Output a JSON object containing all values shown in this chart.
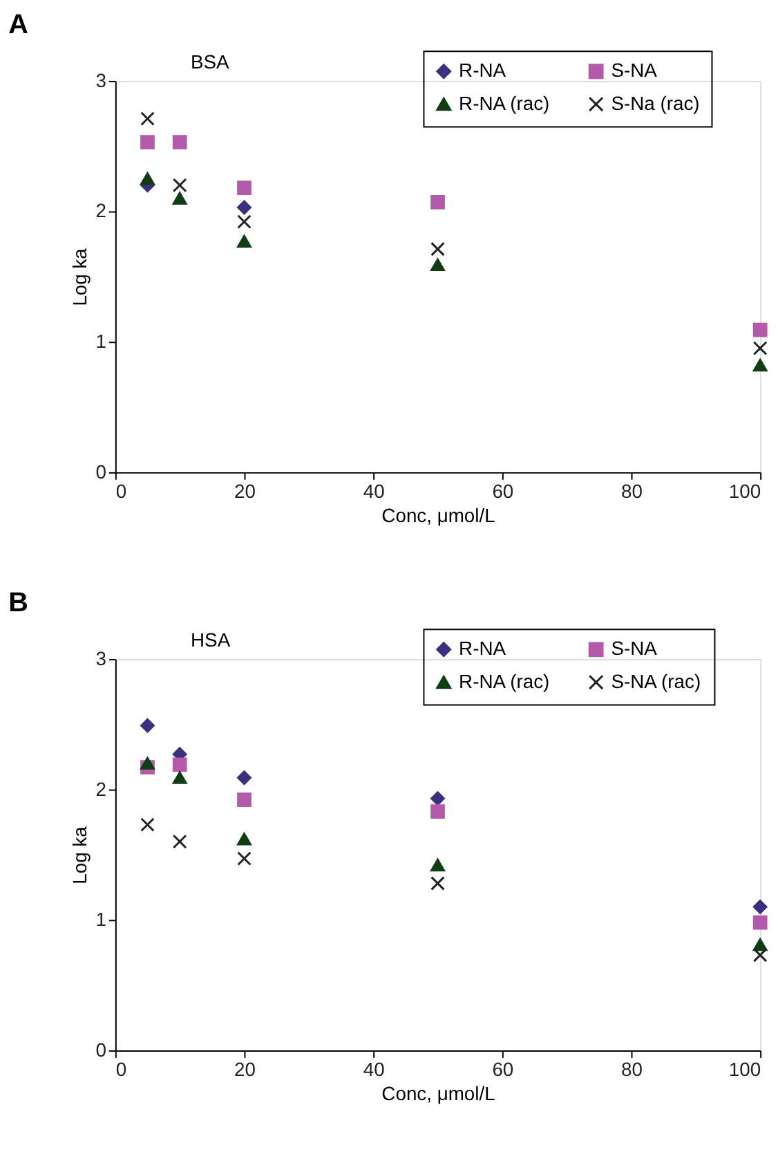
{
  "chart_data": [
    {
      "type": "scatter",
      "title": "A",
      "xlabel": "Conc, μmol/L",
      "ylabel": "Log ka",
      "annotations": [
        "BSA"
      ],
      "x": [
        5,
        10,
        20,
        50,
        100
      ],
      "xlim": [
        0,
        100
      ],
      "xticks": [
        0,
        20,
        40,
        60,
        80,
        100
      ],
      "ylim": [
        0,
        3
      ],
      "yticks": [
        0,
        1,
        2,
        3
      ],
      "legend": "top right",
      "series": [
        {
          "name": "R-NA",
          "color": "#3b2f7f",
          "marker": "diamond",
          "values": [
            2.2,
            null,
            2.03,
            null,
            null
          ]
        },
        {
          "name": "S-NA",
          "color": "#b45aab",
          "marker": "square",
          "values": [
            2.53,
            2.53,
            2.18,
            2.07,
            1.09
          ]
        },
        {
          "name": "R-NA (rac)",
          "color": "#0f3d14",
          "marker": "triangle",
          "values": [
            2.25,
            2.1,
            1.77,
            1.59,
            0.82
          ]
        },
        {
          "name": "S-Na (rac)",
          "color": "#222222",
          "marker": "cross",
          "values": [
            2.71,
            2.2,
            1.92,
            1.71,
            0.95
          ]
        }
      ]
    },
    {
      "type": "scatter",
      "title": "B",
      "xlabel": "Conc, μmol/L",
      "ylabel": "Log ka",
      "annotations": [
        "HSA"
      ],
      "x": [
        5,
        10,
        20,
        50,
        100
      ],
      "xlim": [
        0,
        100
      ],
      "xticks": [
        0,
        20,
        40,
        60,
        80,
        100
      ],
      "ylim": [
        0,
        3
      ],
      "yticks": [
        0,
        1,
        2,
        3
      ],
      "legend": "top right",
      "series": [
        {
          "name": "R-NA",
          "color": "#3b2f7f",
          "marker": "diamond",
          "values": [
            2.49,
            2.27,
            2.09,
            1.93,
            1.1
          ]
        },
        {
          "name": "S-NA",
          "color": "#b45aab",
          "marker": "square",
          "values": [
            2.17,
            2.19,
            1.92,
            1.83,
            0.98
          ]
        },
        {
          "name": "R-NA (rac)",
          "color": "#0f3d14",
          "marker": "triangle",
          "values": [
            2.2,
            2.09,
            1.62,
            1.42,
            0.81
          ]
        },
        {
          "name": "S-NA (rac)",
          "color": "#222222",
          "marker": "cross",
          "values": [
            1.73,
            1.6,
            1.47,
            1.28,
            0.73
          ]
        }
      ]
    }
  ]
}
